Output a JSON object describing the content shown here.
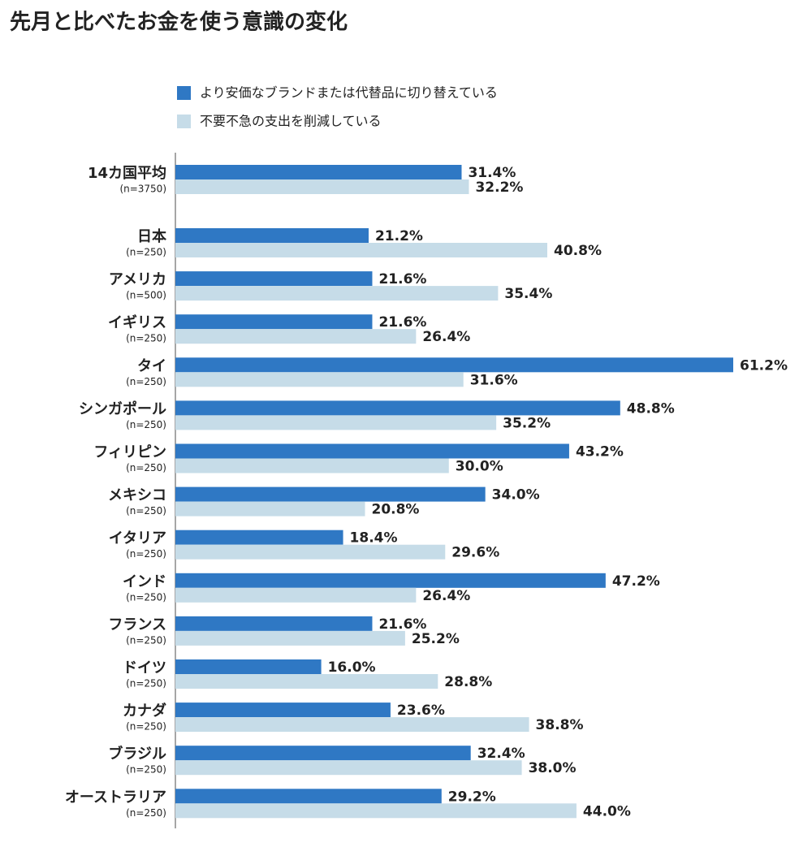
{
  "chart_data": {
    "type": "bar",
    "orientation": "horizontal",
    "title": "先月と比べたお金を使う意識の変化",
    "categories": [
      "14カ国平均",
      "日本",
      "アメリカ",
      "イギリス",
      "タイ",
      "シンガポール",
      "フィリピン",
      "メキシコ",
      "イタリア",
      "インド",
      "フランス",
      "ドイツ",
      "カナダ",
      "ブラジル",
      "オーストラリア"
    ],
    "sample_sizes": [
      "(n=3750)",
      "(n=250)",
      "(n=500)",
      "(n=250)",
      "(n=250)",
      "(n=250)",
      "(n=250)",
      "(n=250)",
      "(n=250)",
      "(n=250)",
      "(n=250)",
      "(n=250)",
      "(n=250)",
      "(n=250)",
      "(n=250)"
    ],
    "series": [
      {
        "name": "より安価なブランドまたは代替品に切り替えている",
        "color": "#2f78c4",
        "values": [
          31.4,
          21.2,
          21.6,
          21.6,
          61.2,
          48.8,
          43.2,
          34.0,
          18.4,
          47.2,
          21.6,
          16.0,
          23.6,
          32.4,
          29.2
        ],
        "value_labels": [
          "31.4%",
          "21.2%",
          "21.6%",
          "21.6%",
          "61.2%",
          "48.8%",
          "43.2%",
          "34.0%",
          "18.4%",
          "47.2%",
          "21.6%",
          "16.0%",
          "23.6%",
          "32.4%",
          "29.2%"
        ]
      },
      {
        "name": "不要不急の支出を削減している",
        "color": "#c6dce8",
        "values": [
          32.2,
          40.8,
          35.4,
          26.4,
          31.6,
          35.2,
          30.0,
          20.8,
          29.6,
          26.4,
          25.2,
          28.8,
          38.8,
          38.0,
          44.0
        ],
        "value_labels": [
          "32.2%",
          "40.8%",
          "35.4%",
          "26.4%",
          "31.6%",
          "35.2%",
          "30.0%",
          "20.8%",
          "29.6%",
          "26.4%",
          "25.2%",
          "28.8%",
          "38.8%",
          "38.0%",
          "44.0%"
        ]
      }
    ]
  }
}
